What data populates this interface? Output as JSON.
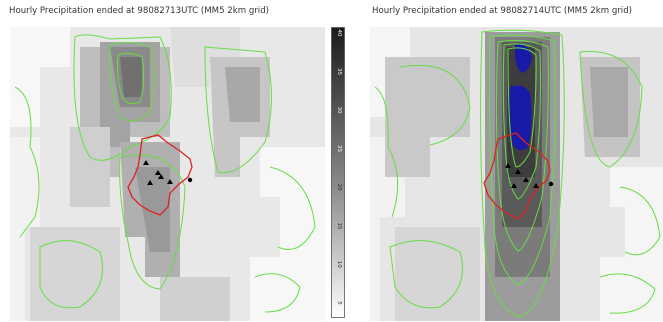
{
  "left_panel": {
    "title": "Hourly Precipitation ended at 98082713UTC (MM5 2km grid)"
  },
  "right_panel": {
    "title": "Hourly Precipitation ended at 98082714UTC (MM5 2km grid)"
  },
  "colorbar": {
    "tick_labels": [
      "40",
      "35",
      "30",
      "25",
      "20",
      "15",
      "10",
      "5"
    ]
  },
  "colors": {
    "boundary_contour": "#dd2222",
    "precip_contour": "#66dd44",
    "max_precip_fill": "#1a1aa8",
    "background": "#ffffff"
  },
  "icons": [
    "station-marker-icon"
  ]
}
